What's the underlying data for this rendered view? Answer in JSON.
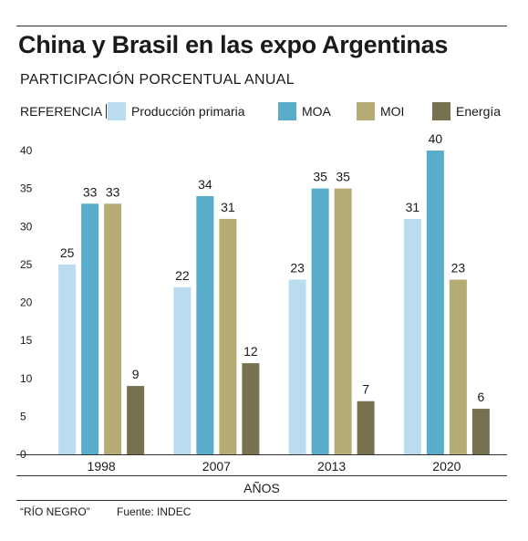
{
  "title": "China y Brasil en las expo Argentinas",
  "subtitle": "PARTICIPACIÓN PORCENTUAL ANUAL",
  "legend_label": "REFERENCIA",
  "colors": {
    "Producción primaria": "#b9dcef",
    "MOA": "#5aaccb",
    "MOI": "#b5ab74",
    "Energía": "#77714f"
  },
  "chart_data": {
    "type": "bar",
    "categories": [
      "1998",
      "2007",
      "2013",
      "2020"
    ],
    "series": [
      {
        "name": "Producción primaria",
        "values": [
          25,
          22,
          23,
          31
        ]
      },
      {
        "name": "MOA",
        "values": [
          33,
          34,
          35,
          40
        ]
      },
      {
        "name": "MOI",
        "values": [
          33,
          31,
          35,
          23
        ]
      },
      {
        "name": "Energía",
        "values": [
          9,
          12,
          7,
          6
        ]
      }
    ],
    "xlabel": "AÑOS",
    "ylabel": "",
    "ylim": [
      0,
      40
    ],
    "yticks": [
      0,
      5,
      10,
      15,
      20,
      25,
      30,
      35,
      40
    ],
    "grid": false,
    "legend_position": "top"
  },
  "footer": {
    "credit": "“RÍO NEGRO”",
    "source": "Fuente: INDEC"
  }
}
